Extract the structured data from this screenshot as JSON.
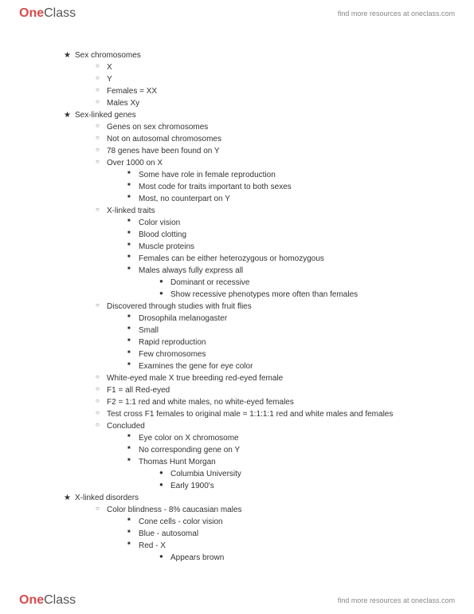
{
  "brand": {
    "one": "One",
    "class": "Class",
    "tagline": "find more resources at oneclass.com"
  },
  "outline": [
    {
      "level": 0,
      "bullet": "star",
      "text": "Sex chromosomes"
    },
    {
      "level": 1,
      "bullet": "circ",
      "text": "X"
    },
    {
      "level": 1,
      "bullet": "circ",
      "text": "Y"
    },
    {
      "level": 1,
      "bullet": "circ",
      "text": "Females = XX"
    },
    {
      "level": 1,
      "bullet": "circ",
      "text": "Males Xy"
    },
    {
      "level": 0,
      "bullet": "star",
      "text": "Sex-linked genes"
    },
    {
      "level": 1,
      "bullet": "circ",
      "text": "Genes on sex chromosomes"
    },
    {
      "level": 1,
      "bullet": "circ",
      "text": "Not on autosomal chromosomes"
    },
    {
      "level": 1,
      "bullet": "circ",
      "text": "78 genes have been found on Y"
    },
    {
      "level": 1,
      "bullet": "circ",
      "text": "Over 1000 on X"
    },
    {
      "level": 2,
      "bullet": "sqr",
      "text": "Some have role in female reproduction"
    },
    {
      "level": 2,
      "bullet": "sqr",
      "text": "Most code for traits important to both sexes"
    },
    {
      "level": 2,
      "bullet": "sqr",
      "text": "Most, no counterpart on Y"
    },
    {
      "level": 1,
      "bullet": "circ",
      "text": "X-linked traits"
    },
    {
      "level": 2,
      "bullet": "sqr",
      "text": "Color vision"
    },
    {
      "level": 2,
      "bullet": "sqr",
      "text": "Blood clotting"
    },
    {
      "level": 2,
      "bullet": "sqr",
      "text": "Muscle proteins"
    },
    {
      "level": 2,
      "bullet": "sqr",
      "text": "Females can be either heterozygous or homozygous"
    },
    {
      "level": 2,
      "bullet": "sqr",
      "text": "Males always fully express all"
    },
    {
      "level": 3,
      "bullet": "dot",
      "text": "Dominant or recessive"
    },
    {
      "level": 3,
      "bullet": "dot",
      "text": "Show recessive phenotypes more often than females"
    },
    {
      "level": 1,
      "bullet": "circ",
      "text": "Discovered through studies with fruit flies"
    },
    {
      "level": 2,
      "bullet": "sqr",
      "text": "Drosophila melanogaster"
    },
    {
      "level": 2,
      "bullet": "sqr",
      "text": "Small"
    },
    {
      "level": 2,
      "bullet": "sqr",
      "text": "Rapid reproduction"
    },
    {
      "level": 2,
      "bullet": "sqr",
      "text": "Few chromosomes"
    },
    {
      "level": 2,
      "bullet": "sqr",
      "text": "Examines the gene for eye color"
    },
    {
      "level": 1,
      "bullet": "circ",
      "text": "White-eyed male X true breeding red-eyed female"
    },
    {
      "level": 1,
      "bullet": "circ",
      "text": "F1 = all Red-eyed"
    },
    {
      "level": 1,
      "bullet": "circ",
      "text": "F2 = 1:1 red and white males, no white-eyed females"
    },
    {
      "level": 1,
      "bullet": "circ",
      "text": "Test cross F1 females to original male = 1:1:1:1 red and white males and females"
    },
    {
      "level": 1,
      "bullet": "circ",
      "text": "Concluded"
    },
    {
      "level": 2,
      "bullet": "sqr",
      "text": "Eye color on X chromosome"
    },
    {
      "level": 2,
      "bullet": "sqr",
      "text": "No corresponding gene on Y"
    },
    {
      "level": 2,
      "bullet": "sqr",
      "text": "Thomas Hunt Morgan"
    },
    {
      "level": 3,
      "bullet": "dot",
      "text": "Columbia University"
    },
    {
      "level": 3,
      "bullet": "dot",
      "text": "Early 1900's"
    },
    {
      "level": 0,
      "bullet": "star",
      "text": "X-linked disorders"
    },
    {
      "level": 1,
      "bullet": "circ",
      "text": "Color blindness - 8% caucasian males"
    },
    {
      "level": 2,
      "bullet": "sqr",
      "text": "Cone cells - color vision"
    },
    {
      "level": 2,
      "bullet": "sqr",
      "text": "Blue - autosomal"
    },
    {
      "level": 2,
      "bullet": "sqr",
      "text": "Red - X"
    },
    {
      "level": 3,
      "bullet": "dot",
      "text": "Appears brown"
    }
  ],
  "bullets": {
    "star": "★",
    "circ": "○",
    "sqr": "■",
    "dot": "●"
  }
}
